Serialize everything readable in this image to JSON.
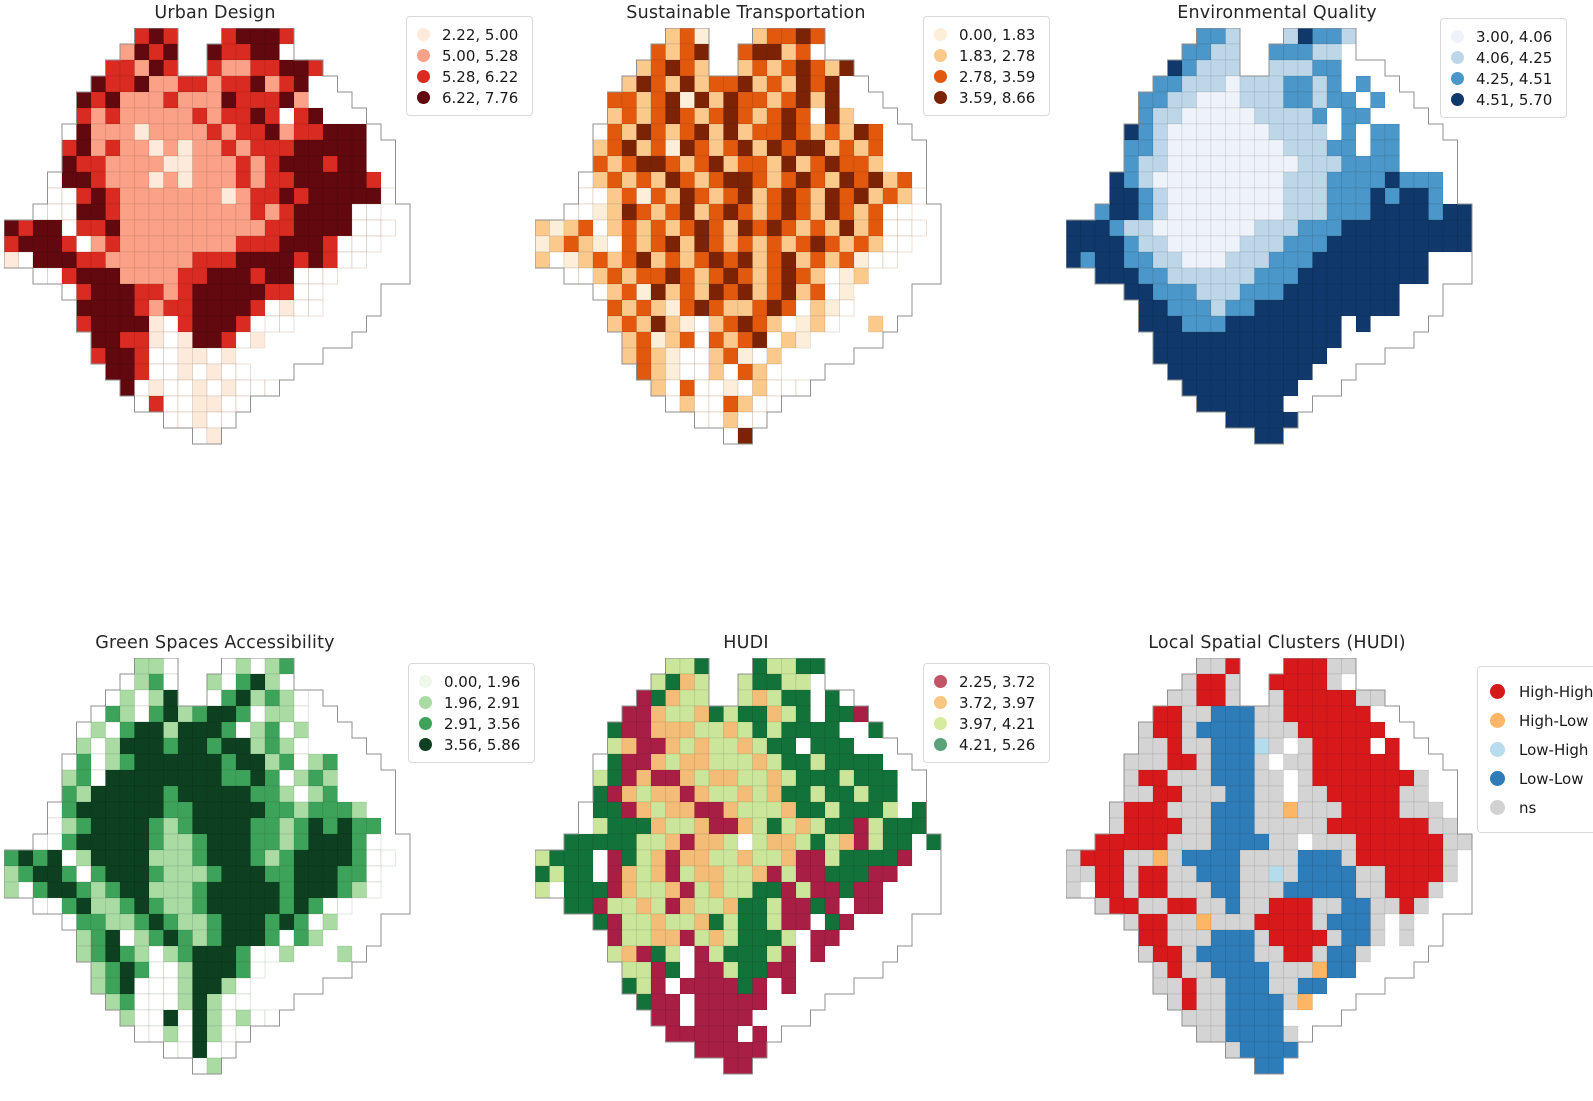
{
  "figure": {
    "background": "#ffffff",
    "boundary_color": "#8f8f8f",
    "cell_grid_line": "rgba(0,0,0,0.14)"
  },
  "mask": [
    "         ###   #####        ",
    "        ####  ######        ",
    "       #####  ########      ",
    "      #################     ",
    "     ###################    ",
    "     ####################   ",
    "    ######################  ",
    "    ####################### ",
    "    ####################### ",
    "   ######################## ",
    "   ######################## ",
    "  ##########################",
    "############################",
    "############################",
    "############################",
    "  ##########################",
    "    ######################  ",
    "     #####################  ",
    "     ####################   ",
    "      ##################    ",
    "      ################      ",
    "       #############        ",
    "        ###########         ",
    "         ########           ",
    "           #####            ",
    "             ##             "
  ],
  "panels": [
    {
      "id": "urban-design",
      "title": "Urban Design",
      "palette": {
        "0": "#fdeada",
        "1": "#fba187",
        "2": "#d92b21",
        "3": "#62090f"
      },
      "faint_stroke": "rgba(160,115,85,0.38)",
      "legend": [
        {
          "label": "2.22, 5.00",
          "color": "#fdeada"
        },
        {
          "label": "5.00, 5.28",
          "color": "#fba187"
        },
        {
          "label": "5.28, 6.22",
          "color": "#d92b21"
        },
        {
          "label": "6.22, 7.76",
          "color": "#62090f"
        }
      ],
      "grid": [
        "         232   23332        ",
        "        1323  32233.        ",
        "       22132  21122332      ",
        "      322311221223123,,     ",
        "     3231112111322231,,,    ",
        "     21211111212232,23,,,   ",
        "    .31110111121223122333,  ",
        "    231211010112122233333,, ",
        "    322111100111212333233,, ",
        "   .3321110101112122333332, ",
        "   ..232111111101223233333. ",
        "  ...3321111111112123333..,,",
        "3233.2231111111111223333...,",
        "23332.12111111112223332...,,",
        "0.333221111112223333232..,,,",
        "  ..2333111122333233...,,,,,",
        "    .233322123333322..,,,,  ",
        "     3333212233332.0..,,,,  ",
        "     233330.23332,..,,,,,   ",
        "      33220.0332.0,,,,,,    ",
        "      2332..00.0,,,,,,      ",
        "       332..0.0..,,,        ",
        "        3.0..0.0...         ",
        "         .2..00..           ",
        "           ..0..            ",
        "             .0             "
      ]
    },
    {
      "id": "sustainable-transportation",
      "title": "Sustainable Transportation",
      "palette": {
        "0": "#fdeeda",
        "1": "#fcc98d",
        "2": "#e2590e",
        "3": "#7c2306"
      },
      "faint_stroke": "rgba(170,120,80,0.38)",
      "legend": [
        {
          "label": "0.00, 1.83",
          "color": "#fdeeda"
        },
        {
          "label": "1.83, 2.78",
          "color": "#fcc98d"
        },
        {
          "label": "2.78, 3.59",
          "color": "#e2590e"
        },
        {
          "label": "3.59, 8.66",
          "color": "#7c2306"
        }
      ],
      "grid": [
        "         120   12232        ",
        "        2123  23312.        ",
        "       12321  12123213      ",
        "      132131223121323,,     ",
        "     2212303132212313,,,    ",
        "     12123212321232,31,,,   ",
        "    .2132123131223212132,,  ",
        "    12312032123132331212,,, ",
        "    21233212312213123221,,, ",
        "   .1212132123321232132312, ",
        "   ..120213212312321323121. ",
        "  ..01321231232123213212..,,",
        "1012.1212123213232121312...,",
        "01210.212313212121232121..,,",
        "1.012123121232312312120..,,,",
        "  ..1212232123212321.01,,,,,",
        "    .120312132312312.0,,,,  ",
        "     2121023211232.10.,,,,  ",
        "     121310.12321,01.,,1,   ",
        "      12012.2123.10,,,,,    ",
        "      1210..120.1,,,,,      ",
        "       210..1.21.,,,        ",
        "        1.2..0.1...         ",
        "         .1..21..           ",
        "           ..1..            ",
        "             .3             "
      ]
    },
    {
      "id": "environmental-quality",
      "title": "Environmental Quality",
      "palette": {
        "0": "#eef3fa",
        "1": "#bdd7e9",
        "2": "#4b97c9",
        "3": "#10386b"
      },
      "faint_stroke": null,
      "legend": [
        {
          "label": "3.00, 4.06",
          "color": "#eef3fa"
        },
        {
          "label": "4.06, 4.25",
          "color": "#bdd7e9"
        },
        {
          "label": "4.25, 4.51",
          "color": "#4b97c9"
        },
        {
          "label": "4.51, 5.70",
          "color": "#10386b"
        }
      ],
      "grid": [
        "         221   13221        ",
        "        2211  22211,        ",
        "       32111  11122,,,      ",
        "      2211101112212,2,,     ",
        "     221100011122122,2,,    ",
        "     2110000011112,22,,,,   ",
        "    32100000001111,2,22,,,  ",
        "    2210000000011122,22,,,, ",
        "    2110000000001112222,,,, ",
        "   32100000000011122223222, ",
        "   33210000000011122232332. ",
        "  23321000000001112223333233",
        "3332110000000111222333333333",
        "3333211000001112223333333333",
        "3233221100011122233333333,,,",
        "  33322111111222333333333,,,",
        "    3322211122233333333,,,  ",
        "     332221223333333333,,,  ",
        "     33322233333333,3,,,,   ",
        "      3333333333333,,,,,    ",
        "      333333333333,,,,      ",
        "       3333333333,,,        ",
        "        33333333,,,         ",
        "         333333,,           ",
        "           33333            ",
        "             33             "
      ]
    },
    {
      "id": "green-spaces-accessibility",
      "title": "Green Spaces Accessibility",
      "palette": {
        "0": "#eef7ea",
        "1": "#a9dba3",
        "2": "#3da35b",
        "3": "#0d4021"
      },
      "faint_stroke": "rgba(120,155,115,0.38)",
      "legend": [
        {
          "label": "0.00, 1.96",
          "color": "#eef7ea"
        },
        {
          "label": "1.96, 2.91",
          "color": "#a9dba3"
        },
        {
          "label": "2.91, 3.56",
          "color": "#3da35b"
        },
        {
          "label": "3.56, 5.86",
          "color": "#0d4021"
        }
      ],
      "grid": [
        "         11.   .1.12        ",
        "        .12.  1.231.        ",
        "       .1.13  .23121.,      ",
        "      .21.2312332.11.,,     ",
        "     .1.23313332.12.1,,,    ",
        "     1.1333233233121.,,,,   ",
        "    .2.1233333323312.12,,,  ",
        "    12.333333332232.121,,,, ",
        "    2133333233333221.12,,,, ",
        "   .233333322333332212221,, ",
        "   .1233332123333221232322, ",
        "  ..233333211233322123332.,,",
        "2323.13333111233321233332..,",
        "12332.2333211123332233322.,,",
        "1.23321233111233333233321.,,",
        "  ..231123211233333232..,,,,",
        "    .2211232112333232.1,,,  ",
        "     123.1232123332.21,,,,  ",
        "     12321.123332,.1,,,1,   ",
        "      1232..13332.,,,,,,    ",
        "      123...1331.,,,,,      ",
        "       12...131..,,,        ",
        "        1..3.31.1..         ",
        "         ..1.31..           ",
        "           ..3..            ",
        "             .1             "
      ]
    },
    {
      "id": "hudi",
      "title": "HUDI",
      "palette": {
        "0": "#a91e45",
        "1": "#f4bd77",
        "2": "#cbe69b",
        "3": "#13713a"
      },
      "faint_stroke": null,
      "legend": [
        {
          "label": "2.25, 3.72",
          "color": "#c15466"
        },
        {
          "label": "3.72, 3.97",
          "color": "#f8c67f"
        },
        {
          "label": "3.97, 4.21",
          "color": "#d6eb9e"
        },
        {
          "label": "4.21, 5.26",
          "color": "#5aa378"
        }
      ],
      "grid": [
        "         223   32233        ",
        "        2312  23322,        ",
        "       03122  21233,3,      ",
        "      0012213233123,330     ",
        "     3001112212323333,,3    ",
        "     2100121221233,333,,,   ",
        "    ,3001211222123323333,,  ",
        "    230100121122123332333,, ",
        "    301211012212133233233,, ",
        "   ,330121100122213323332,3 ",
        "   ,23331221001232123302333 ",
        "  333332210112,21123210233,3",
        "2333,032101122122100233330,,",
        "3233,01210211221020033300,,,",
        "2,3330122102122330200300,,,,",
        "  3302212012213320030,00,,,,",
        "    302212213233200,30,,,,  ",
        "     0221102123332,00,,,,,  ",
        "     21032,0233320,0,,,,,   ",
        "      2203,0023300,,,,,,    ",
        "      320,000030,0,,,,      ",
        "       300,00000,,,,        ",
        "        00,0000,,,,         ",
        "         00000,0,           ",
        "           00000            ",
        "             00             "
      ]
    },
    {
      "id": "local-spatial-clusters-hudi",
      "title": "Local Spatial Clusters (HUDI)",
      "palette": {
        "H": "#d7191c",
        "h": "#fdb566",
        "L": "#b5dced",
        "l": "#2e7cb8",
        "n": "#d4d4d4"
      },
      "faint_stroke": null,
      "legend": [
        {
          "label": "High-High",
          "color": "#d7191c"
        },
        {
          "label": "High-Low",
          "color": "#fdb567"
        },
        {
          "label": "Low-High",
          "color": "#b8dcee"
        },
        {
          "label": "Low-Low",
          "color": "#2e7cb8"
        },
        {
          "label": "ns",
          "color": "#d2d2d2"
        }
      ],
      "grid": [
        "         nnH   HHHnn        ",
        "        nHHn  HHHHn,        ",
        "       nnHHn  nHHHHHnn      ",
        "      HHnnlllnnHHHHHH,,     ",
        "     nHHnllllnnnHHHHHH,,    ",
        "     nnHnnlllLn,nHHHH,H,,   ",
        "    nnnHHnllln,nnHHHHHH,,,  ",
        "    nHHnnnlllnn,nHHHHHHHn,, ",
        "    nnHHnnnllnn,nnHHHHHnn,, ",
        "   nHHHnnnlllnnhnnnHHHHnnn, ",
        "   nHHHHnnlllnnnnnHHHHHHHnn ",
        "  HHHHHnnnllllnn,nnnHHHHHHnn",
        "nHHHnnhnllllnnnnlllnHHHHHHn,",
        "nnHHnHHnnlllnnLnllllnnHHHHn,",
        "n,HHnHHnnnllnnnlllllnnHHHn,,",
        "  nHHnnHHnnlnnHHHnnllnnHn,,,",
        "    nHHnnhnnnHHHHnllln,n,,  ",
        "     HHnnnlllnHHHHnlln,n,,  ",
        "     nHHnllllnnHHnlln,,,,   ",
        "      nHnnllllnnnhll,,,,    ",
        "      nnHnnlllnnll,,,,      ",
        "       nHnnllllnh,,,        ",
        "        nnnllll,,,,         ",
        "         nnlllln,           ",
        "           nllll            ",
        "             ll             "
      ]
    }
  ]
}
